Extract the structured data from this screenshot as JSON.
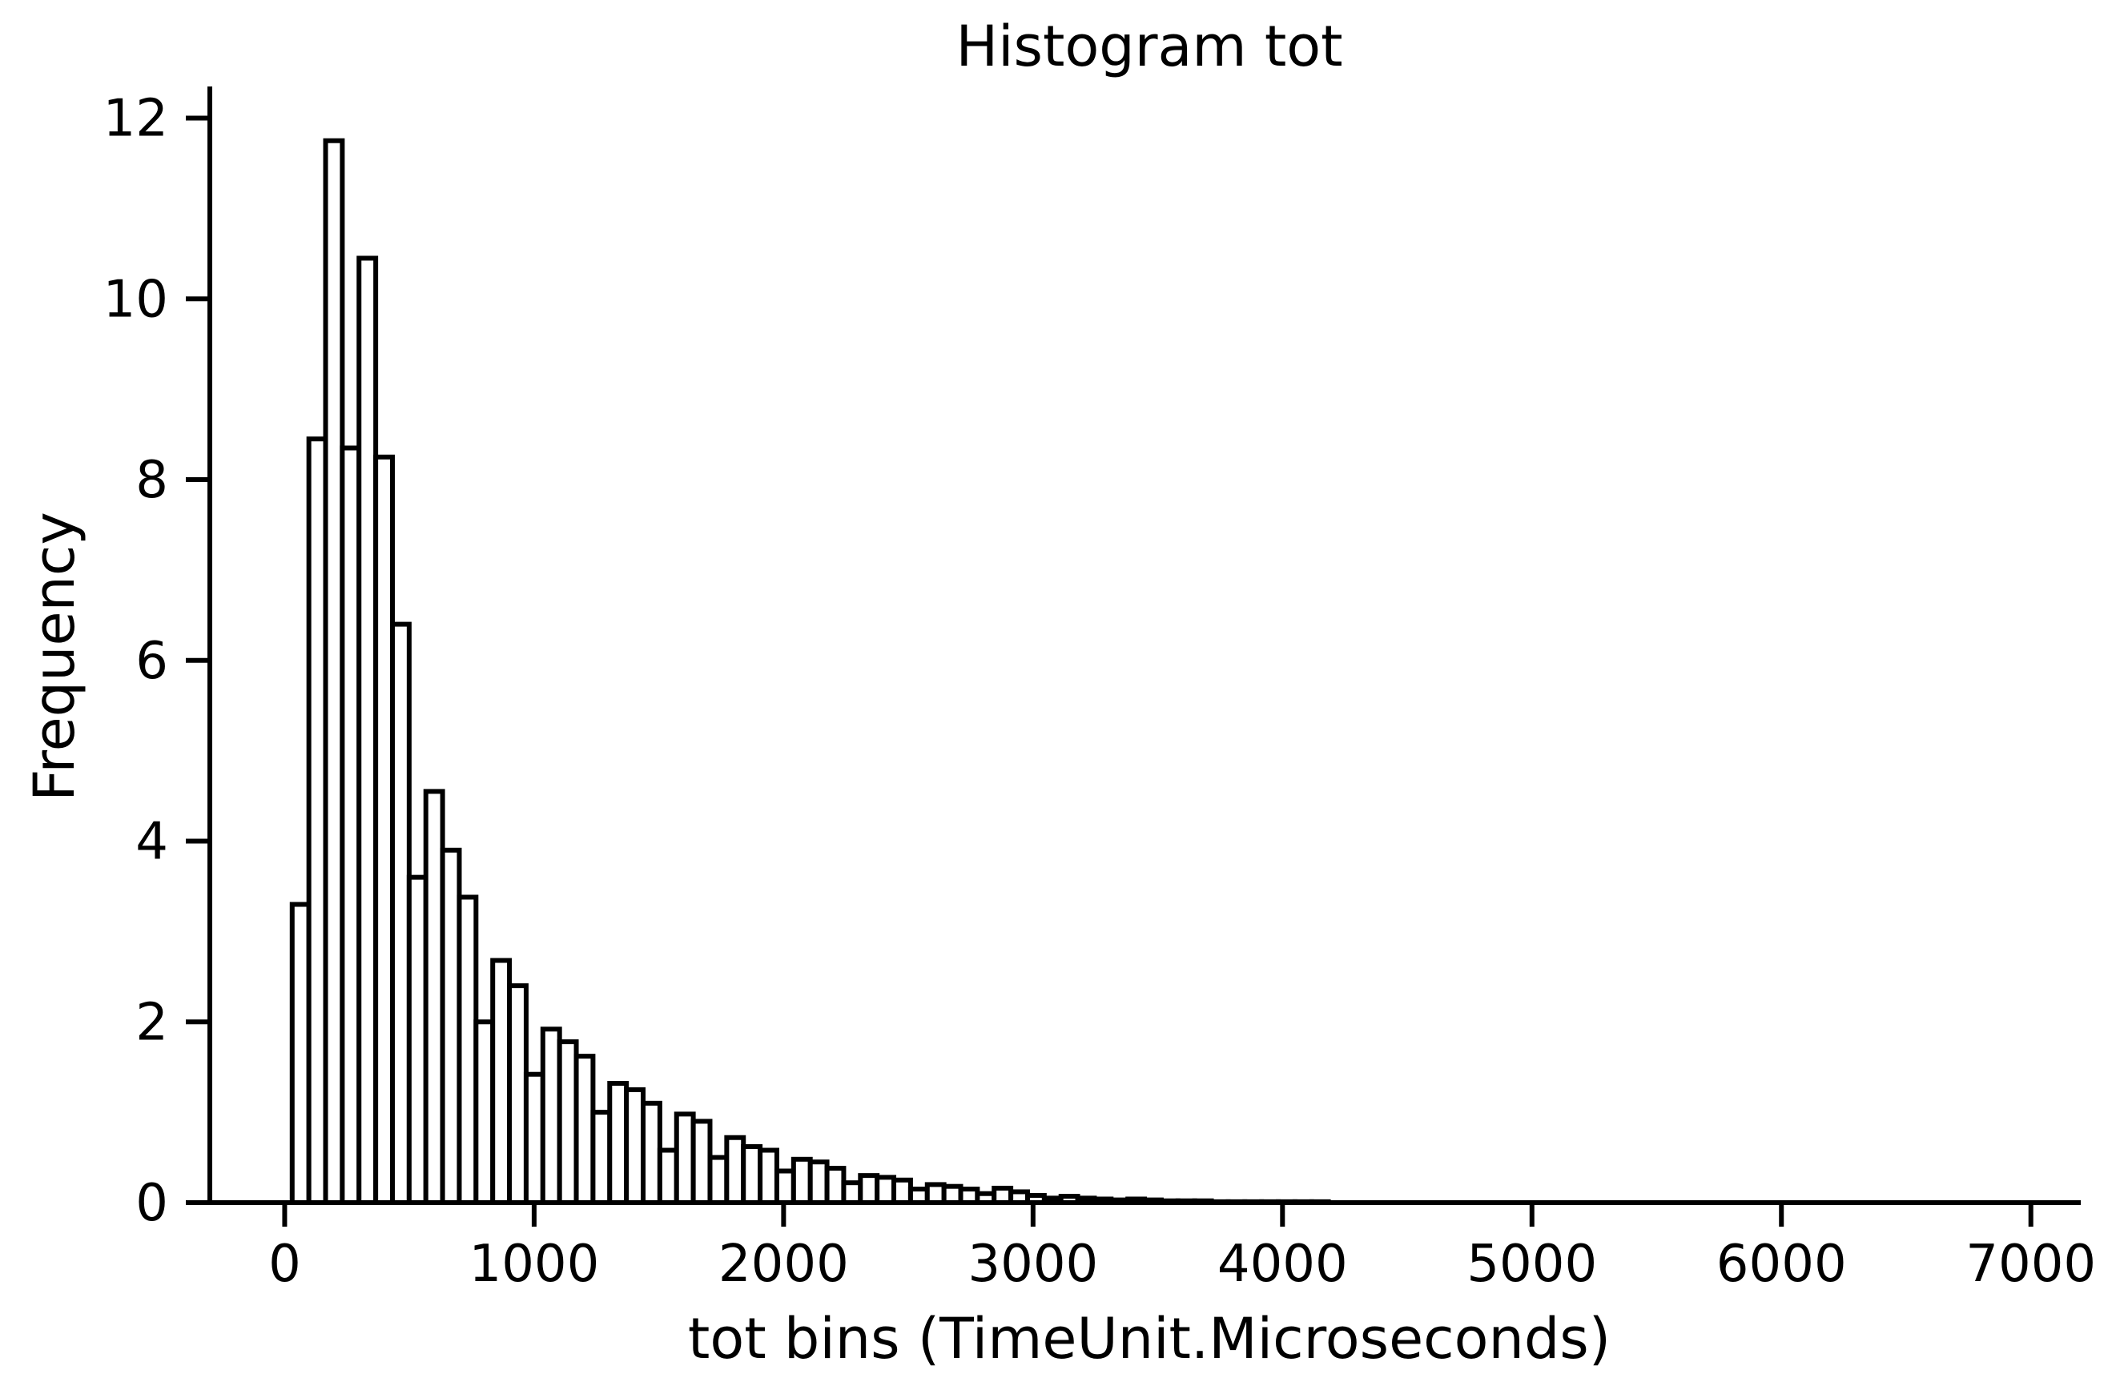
{
  "chart_data": {
    "type": "bar",
    "subtype": "histogram",
    "title": "Histogram tot",
    "xlabel": "tot bins (TimeUnit.Microseconds)",
    "ylabel": "Frequency",
    "xlim": [
      -300,
      7200
    ],
    "ylim": [
      0,
      12.35
    ],
    "bin_width": 67,
    "x_ticks": [
      0,
      1000,
      2000,
      3000,
      4000,
      5000,
      6000,
      7000
    ],
    "x_tick_labels": [
      "0",
      "1000",
      "2000",
      "3000",
      "4000",
      "5000",
      "6000",
      "7000"
    ],
    "y_ticks": [
      0,
      2,
      4,
      6,
      8,
      10,
      12
    ],
    "y_tick_labels": [
      "0",
      "2",
      "4",
      "6",
      "8",
      "10",
      "12"
    ],
    "bins_start": [
      30,
      97,
      164,
      231,
      298,
      365,
      432,
      499,
      566,
      633,
      700,
      767,
      834,
      901,
      968,
      1035,
      1102,
      1169,
      1236,
      1303,
      1370,
      1437,
      1504,
      1571,
      1638,
      1705,
      1772,
      1839,
      1906,
      1973,
      2040,
      2107,
      2174,
      2241,
      2308,
      2375,
      2442,
      2509,
      2576,
      2643,
      2710,
      2777,
      2844,
      2911,
      2978,
      3045,
      3112,
      3179,
      3246,
      3313,
      3380,
      3447,
      3514,
      3581,
      3648,
      3715,
      3782,
      3849,
      3916,
      3983,
      4050,
      4117
    ],
    "values": [
      3.3,
      8.45,
      11.75,
      8.35,
      10.45,
      8.25,
      6.4,
      3.6,
      4.55,
      3.9,
      3.38,
      2.0,
      2.68,
      2.4,
      1.42,
      1.92,
      1.78,
      1.62,
      1.0,
      1.32,
      1.25,
      1.1,
      0.58,
      0.98,
      0.9,
      0.5,
      0.72,
      0.62,
      0.58,
      0.35,
      0.48,
      0.45,
      0.38,
      0.22,
      0.3,
      0.28,
      0.25,
      0.15,
      0.2,
      0.18,
      0.15,
      0.1,
      0.16,
      0.12,
      0.08,
      0.05,
      0.07,
      0.05,
      0.04,
      0.03,
      0.04,
      0.03,
      0.02,
      0.02,
      0.02,
      0.01,
      0.01,
      0.01,
      0.01,
      0.01,
      0.01,
      0.01
    ],
    "bar_fill": "#ffffff",
    "bar_stroke": "#000000",
    "grid": false,
    "legend": "none",
    "spines": "left-bottom"
  }
}
